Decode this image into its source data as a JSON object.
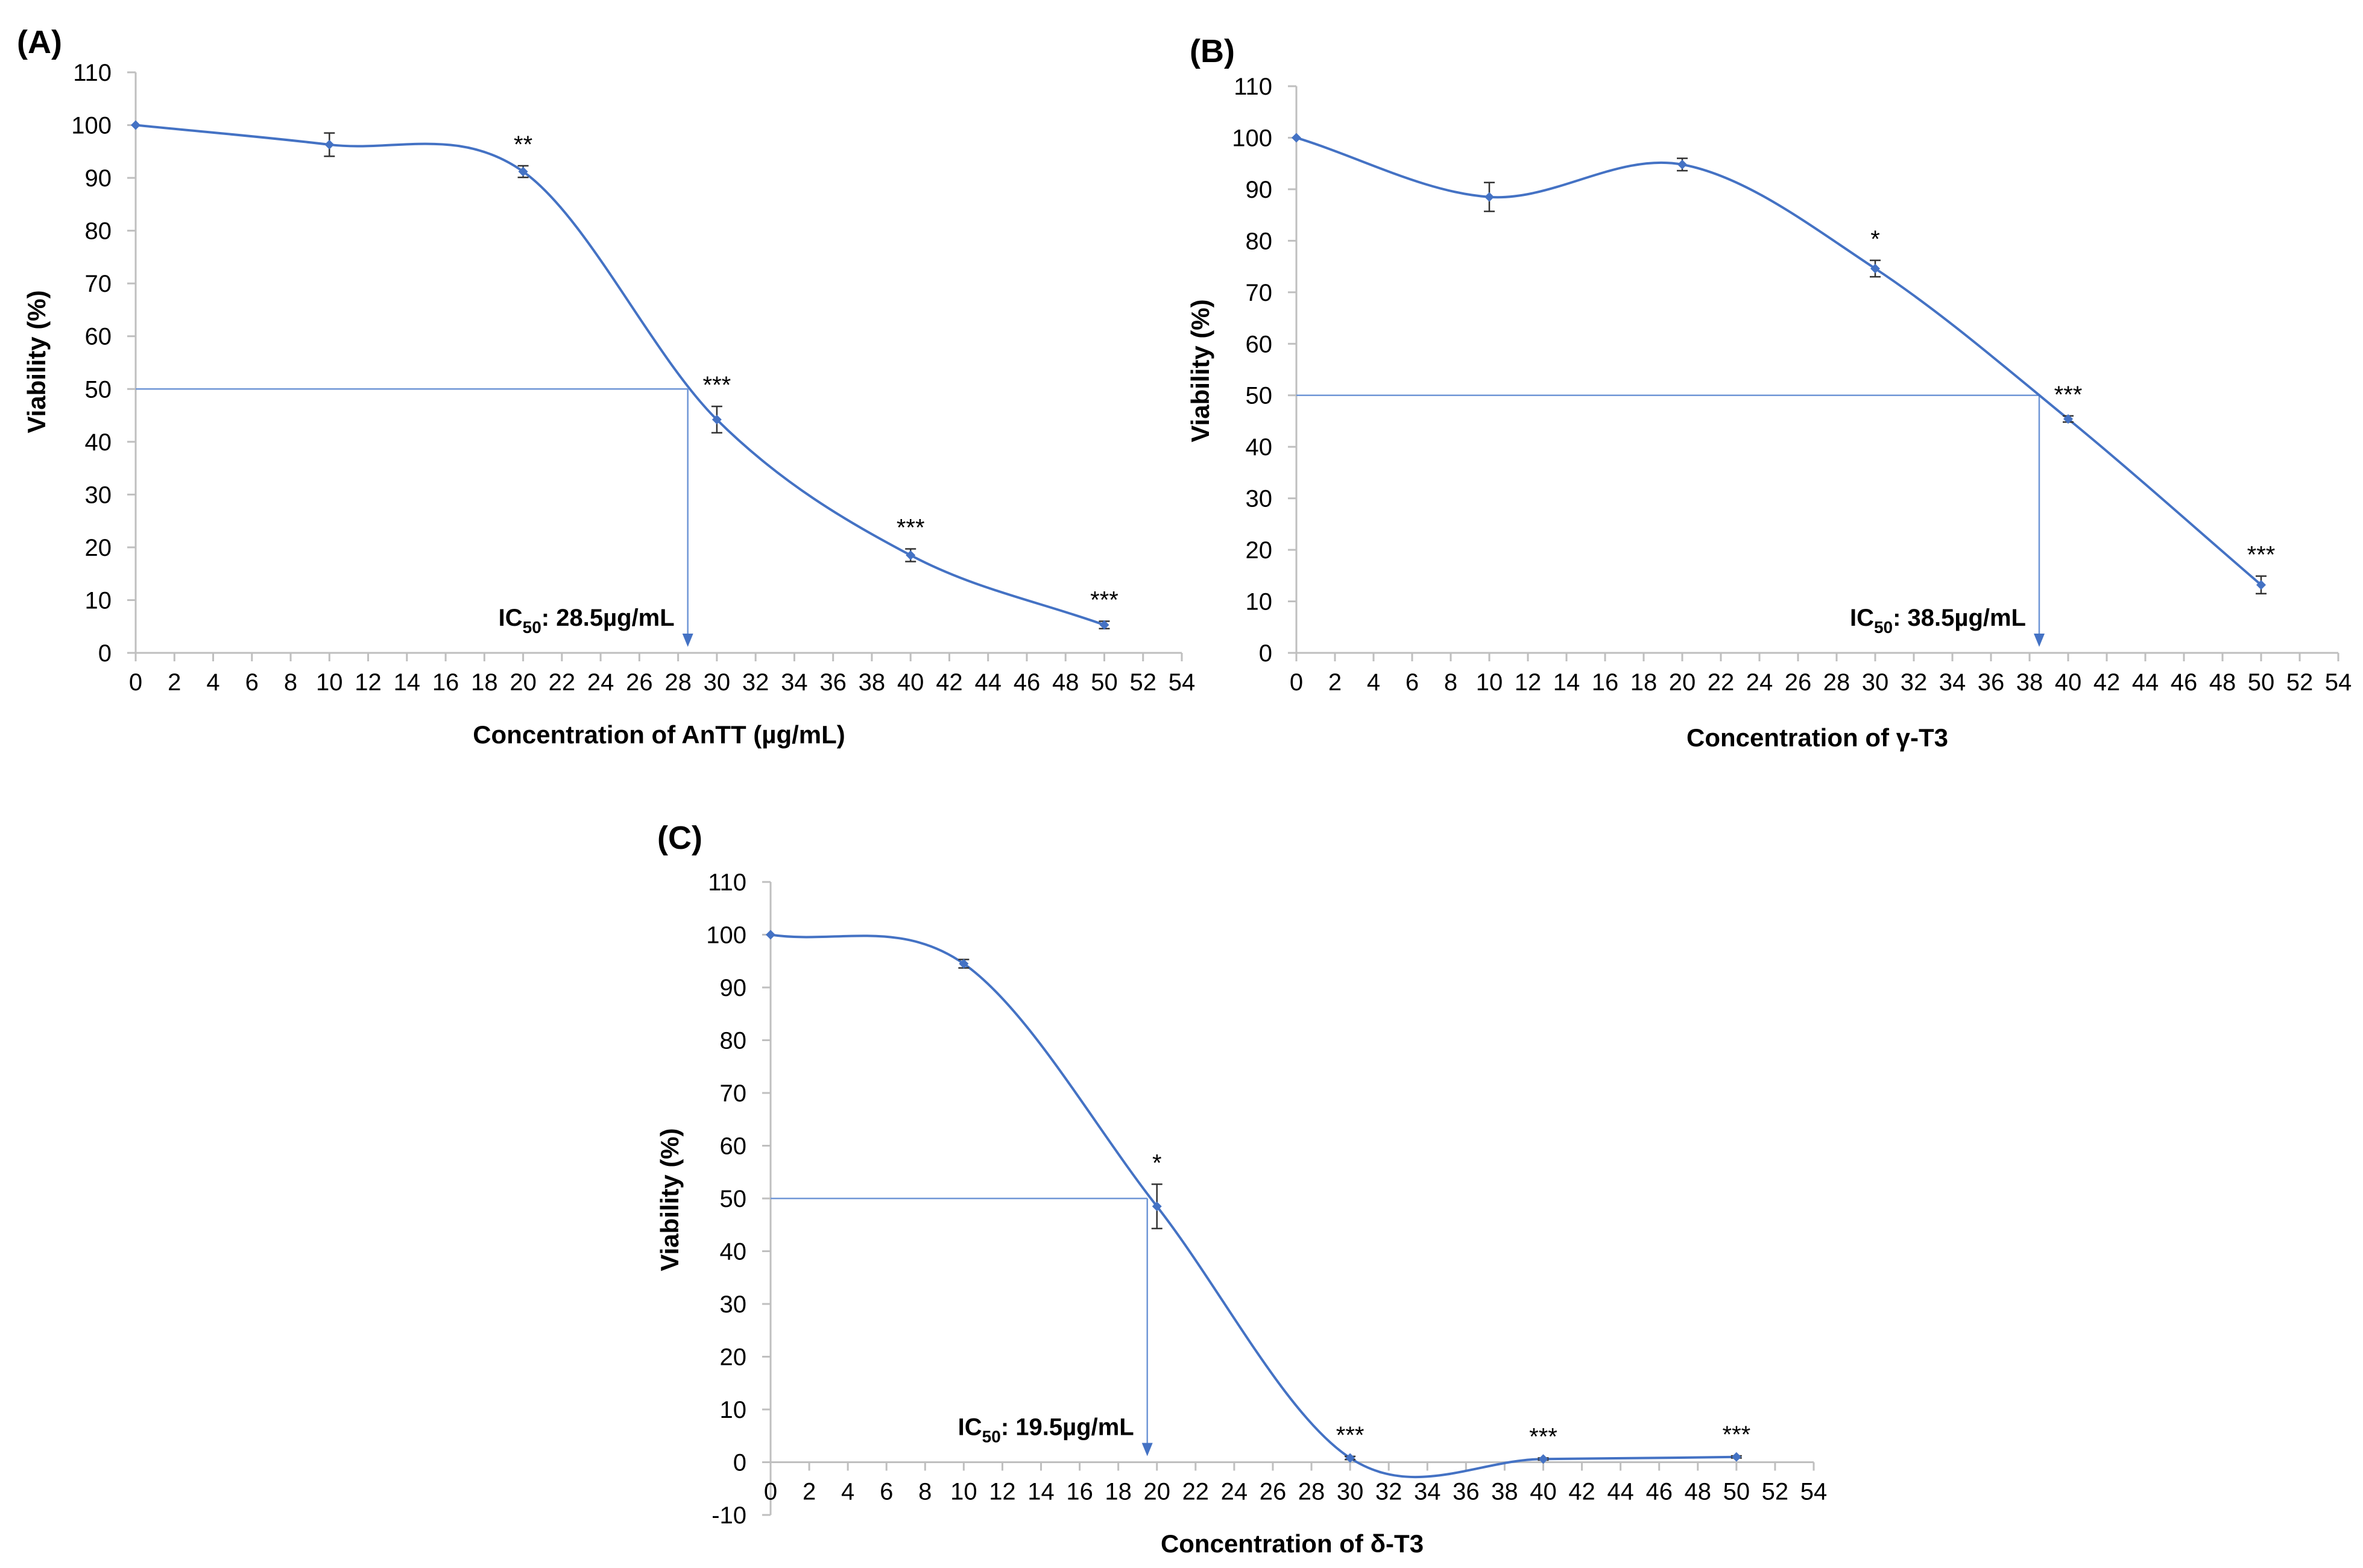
{
  "chart_data": [
    {
      "type": "line",
      "panel_label": "(A)",
      "xlabel": "Concentration of AnTT (µg/mL)",
      "ylabel": "Viability (%)",
      "x_ticks": [
        0,
        2,
        4,
        6,
        8,
        10,
        12,
        14,
        16,
        18,
        20,
        22,
        24,
        26,
        28,
        30,
        32,
        34,
        36,
        38,
        40,
        42,
        44,
        46,
        48,
        50,
        52,
        54
      ],
      "y_ticks": [
        0,
        10,
        20,
        30,
        40,
        50,
        60,
        70,
        80,
        90,
        100,
        110
      ],
      "xlim": [
        0,
        54
      ],
      "ylim": [
        0,
        110
      ],
      "series": [
        {
          "name": "AnTT",
          "color": "#4472C4",
          "x": [
            0,
            10,
            20,
            30,
            40,
            50
          ],
          "values": [
            100,
            96.3,
            91.2,
            44.2,
            18.5,
            5.3
          ],
          "errors": [
            0,
            2.2,
            1.1,
            2.5,
            1.2,
            0.7
          ],
          "significance": [
            "",
            "",
            "**",
            "***",
            "***",
            "***"
          ]
        }
      ],
      "ic50": {
        "x": 28.5,
        "y": 50,
        "prefix": "IC",
        "subscript": "50",
        "suffix": ": 28.5µg/mL"
      }
    },
    {
      "type": "line",
      "panel_label": "(B)",
      "xlabel": "Concentration of γ-T3",
      "ylabel": "Viability (%)",
      "x_ticks": [
        0,
        2,
        4,
        6,
        8,
        10,
        12,
        14,
        16,
        18,
        20,
        22,
        24,
        26,
        28,
        30,
        32,
        34,
        36,
        38,
        40,
        42,
        44,
        46,
        48,
        50,
        52,
        54
      ],
      "y_ticks": [
        0,
        10,
        20,
        30,
        40,
        50,
        60,
        70,
        80,
        90,
        100,
        110
      ],
      "xlim": [
        0,
        54
      ],
      "ylim": [
        0,
        110
      ],
      "series": [
        {
          "name": "γ-T3",
          "color": "#4472C4",
          "x": [
            0,
            10,
            20,
            30,
            40,
            50
          ],
          "values": [
            100,
            88.5,
            94.8,
            74.6,
            45.4,
            13.2
          ],
          "errors": [
            0,
            2.8,
            1.2,
            1.6,
            0.6,
            1.7
          ],
          "significance": [
            "",
            "",
            "",
            "*",
            "***",
            "***"
          ]
        }
      ],
      "ic50": {
        "x": 38.5,
        "y": 50,
        "prefix": "IC",
        "subscript": "50",
        "suffix": ": 38.5µg/mL"
      }
    },
    {
      "type": "line",
      "panel_label": "(C)",
      "xlabel": "Concentration of δ-T3",
      "ylabel": "Viability (%)",
      "x_ticks": [
        0,
        2,
        4,
        6,
        8,
        10,
        12,
        14,
        16,
        18,
        20,
        22,
        24,
        26,
        28,
        30,
        32,
        34,
        36,
        38,
        40,
        42,
        44,
        46,
        48,
        50,
        52,
        54
      ],
      "y_ticks": [
        -10,
        0,
        10,
        20,
        30,
        40,
        50,
        60,
        70,
        80,
        90,
        100,
        110
      ],
      "xlim": [
        0,
        54
      ],
      "ylim": [
        -10,
        110
      ],
      "series": [
        {
          "name": "δ-T3",
          "color": "#4472C4",
          "x": [
            0,
            10,
            20,
            30,
            40,
            50
          ],
          "values": [
            100,
            94.5,
            48.5,
            0.8,
            0.6,
            1.0
          ],
          "errors": [
            0,
            0.8,
            4.2,
            0.3,
            0.2,
            0.2
          ],
          "significance": [
            "",
            "",
            "*",
            "***",
            "***",
            "***"
          ]
        }
      ],
      "ic50": {
        "x": 19.5,
        "y": 50,
        "prefix": "IC",
        "subscript": "50",
        "suffix": ": 19.5µg/mL"
      }
    }
  ]
}
